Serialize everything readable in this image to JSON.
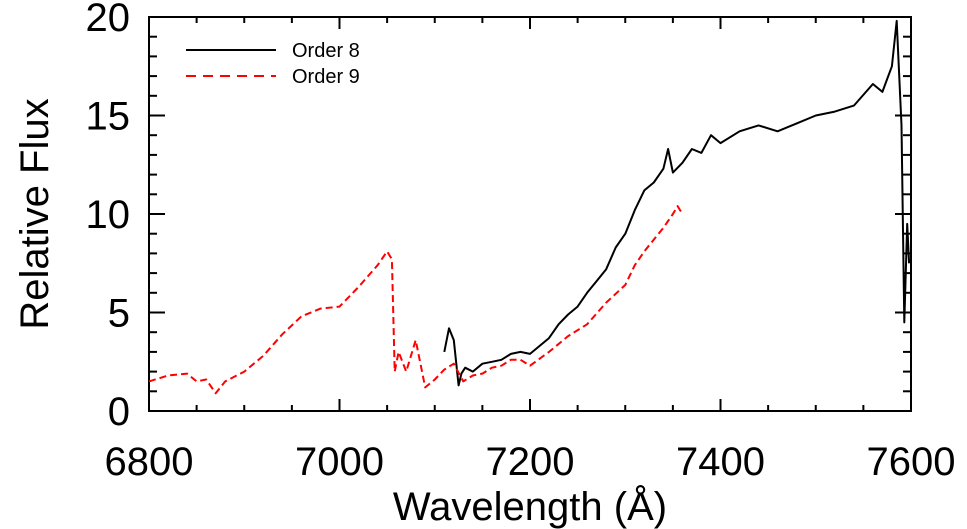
{
  "chart_data": {
    "type": "line",
    "title": "",
    "xlabel": "Wavelength (Å)",
    "ylabel": "Relative Flux",
    "xlim": [
      6800,
      7600
    ],
    "ylim": [
      0,
      20
    ],
    "xticks": [
      6800,
      7000,
      7200,
      7400,
      7600
    ],
    "yticks": [
      0,
      5,
      10,
      15,
      20
    ],
    "x_tick_labels": [
      "6800",
      "7000",
      "7200",
      "7400",
      "7600"
    ],
    "y_tick_labels": [
      "0",
      "5",
      "10",
      "15",
      "20"
    ],
    "grid": false,
    "legend": {
      "position": "top-left",
      "entries": [
        "Order 8",
        "Order 9"
      ]
    },
    "series": [
      {
        "name": "Order 8",
        "color": "#000000",
        "style": "solid",
        "x": [
          7110,
          7115,
          7120,
          7125,
          7128,
          7132,
          7140,
          7150,
          7160,
          7170,
          7180,
          7190,
          7200,
          7210,
          7220,
          7230,
          7240,
          7250,
          7260,
          7270,
          7280,
          7290,
          7300,
          7310,
          7320,
          7330,
          7340,
          7345,
          7350,
          7360,
          7370,
          7380,
          7390,
          7400,
          7420,
          7440,
          7460,
          7480,
          7500,
          7520,
          7540,
          7560,
          7570,
          7580,
          7585,
          7590,
          7593,
          7596,
          7598
        ],
        "y": [
          3.0,
          4.2,
          3.6,
          1.3,
          1.9,
          2.2,
          2.0,
          2.4,
          2.5,
          2.6,
          2.9,
          3.0,
          2.9,
          3.3,
          3.7,
          4.4,
          4.9,
          5.3,
          6.0,
          6.6,
          7.2,
          8.3,
          9.0,
          10.2,
          11.2,
          11.6,
          12.3,
          13.3,
          12.1,
          12.6,
          13.3,
          13.1,
          14.0,
          13.6,
          14.2,
          14.5,
          14.2,
          14.6,
          15.0,
          15.2,
          15.5,
          16.6,
          16.2,
          17.5,
          19.8,
          14.5,
          4.5,
          9.5,
          7.5
        ]
      },
      {
        "name": "Order 9",
        "color": "#ff0000",
        "style": "dashed",
        "x": [
          6800,
          6820,
          6840,
          6850,
          6860,
          6870,
          6880,
          6900,
          6920,
          6940,
          6960,
          6980,
          7000,
          7020,
          7040,
          7050,
          7055,
          7058,
          7062,
          7070,
          7080,
          7090,
          7100,
          7110,
          7120,
          7130,
          7140,
          7150,
          7160,
          7170,
          7180,
          7190,
          7200,
          7220,
          7240,
          7260,
          7280,
          7300,
          7310,
          7320,
          7330,
          7340,
          7350,
          7355,
          7360
        ],
        "y": [
          1.5,
          1.8,
          1.9,
          1.5,
          1.6,
          0.9,
          1.5,
          2.0,
          2.8,
          3.9,
          4.8,
          5.2,
          5.3,
          6.3,
          7.4,
          8.1,
          7.7,
          2.0,
          3.0,
          2.0,
          3.6,
          1.2,
          1.6,
          2.1,
          2.4,
          1.5,
          1.8,
          1.9,
          2.2,
          2.3,
          2.6,
          2.6,
          2.3,
          3.0,
          3.8,
          4.4,
          5.5,
          6.4,
          7.4,
          8.1,
          8.7,
          9.3,
          10.0,
          10.4,
          10.0
        ]
      }
    ]
  }
}
